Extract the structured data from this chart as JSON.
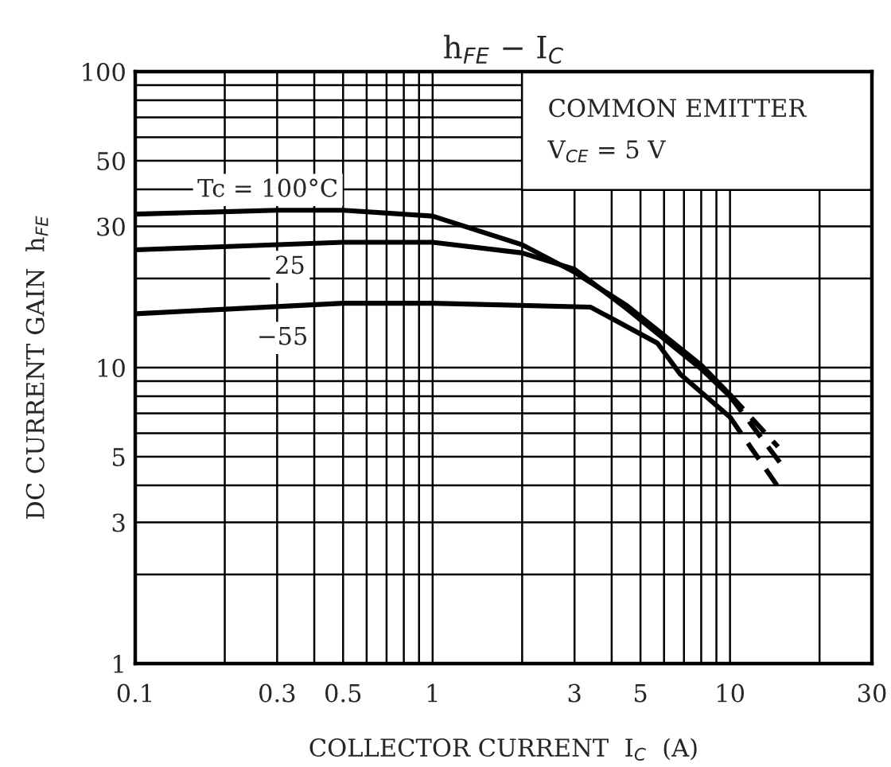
{
  "chart_data": {
    "type": "line",
    "title": "h$_{FE}$ − I$_{C}$",
    "xlabel": "COLLECTOR CURRENT  I$_{C}$  (A)",
    "ylabel": "DC CURRENT GAIN  h$_{FE}$",
    "log": "xy",
    "grid": true,
    "xlim": [
      0.1,
      30
    ],
    "ylim": [
      1,
      100
    ],
    "xticks": [
      0.1,
      {
        "value": 0.2,
        "label": null
      },
      0.3,
      {
        "value": 0.4,
        "label": null
      },
      0.5,
      {
        "value": 0.6,
        "label": null
      },
      {
        "value": 0.7,
        "label": null
      },
      {
        "value": 0.8,
        "label": null
      },
      {
        "value": 0.9,
        "label": null
      },
      1,
      {
        "value": 2,
        "label": null
      },
      3,
      {
        "value": 4,
        "label": null
      },
      5,
      {
        "value": 6,
        "label": null
      },
      {
        "value": 7,
        "label": null
      },
      {
        "value": 8,
        "label": null
      },
      {
        "value": 9,
        "label": null
      },
      10,
      {
        "value": 20,
        "label": null
      },
      30
    ],
    "yticks": [
      1,
      {
        "value": 2,
        "label": null
      },
      3,
      {
        "value": 4,
        "label": null
      },
      5,
      {
        "value": 6,
        "label": null
      },
      {
        "value": 7,
        "label": null
      },
      {
        "value": 8,
        "label": null
      },
      {
        "value": 9,
        "label": null
      },
      10,
      {
        "value": 20,
        "label": null
      },
      30,
      {
        "value": 40,
        "label": null
      },
      50,
      {
        "value": 60,
        "label": null
      },
      {
        "value": 70,
        "label": null
      },
      {
        "value": 80,
        "label": null
      },
      {
        "value": 90,
        "label": null
      },
      100
    ],
    "series": [
      {
        "name": "Tc = 100°C",
        "color": "#000000",
        "line_style": "solid",
        "x": [
          0.1,
          0.3,
          0.5,
          1,
          2,
          3,
          4.5,
          8,
          10
        ],
        "values": [
          33,
          34,
          34,
          32.5,
          26,
          21,
          16.2,
          10.2,
          8.1
        ]
      },
      {
        "color": "#000000",
        "line_style": "dashed",
        "x": [
          10,
          14.5
        ],
        "values": [
          8.1,
          5.4
        ]
      },
      {
        "name": "25",
        "color": "#000000",
        "line_style": "solid",
        "x": [
          0.1,
          0.5,
          1,
          2,
          3,
          4.5,
          8,
          10
        ],
        "values": [
          25,
          26.5,
          26.5,
          24.4,
          21.5,
          15.8,
          9.9,
          8.0
        ]
      },
      {
        "color": "#000000",
        "line_style": "dashed",
        "x": [
          10,
          14.9
        ],
        "values": [
          8.0,
          4.7
        ]
      },
      {
        "name": "−55",
        "color": "#000000",
        "line_style": "solid",
        "x": [
          0.1,
          0.5,
          1,
          3.4,
          5.7,
          6.8,
          10
        ],
        "values": [
          15.2,
          16.5,
          16.5,
          16.0,
          12.1,
          9.5,
          6.8
        ]
      },
      {
        "color": "#000000",
        "line_style": "dashed",
        "x": [
          10,
          14.9
        ],
        "values": [
          6.8,
          3.8
        ]
      }
    ],
    "annotations": [
      "COMMON EMITTER",
      "V$_{CE}$ = 5 V"
    ]
  }
}
